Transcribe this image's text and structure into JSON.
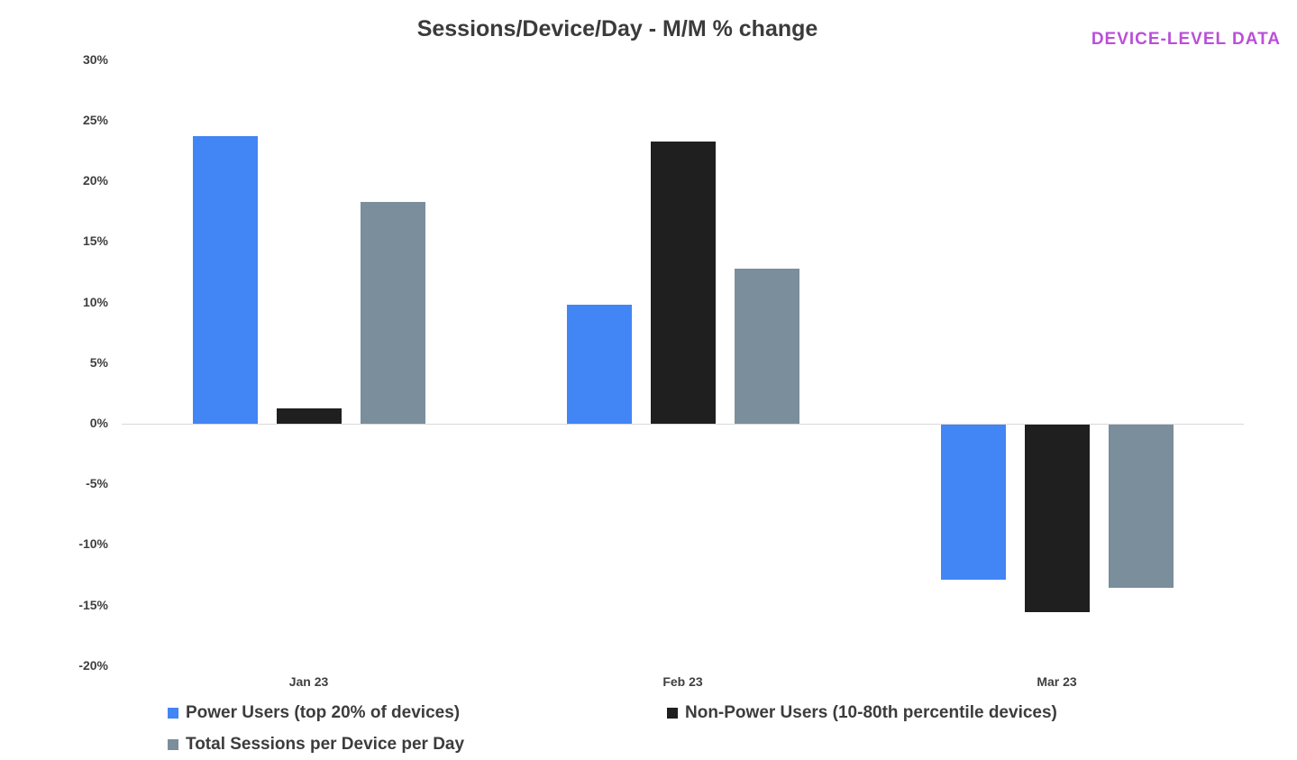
{
  "header": {
    "title": "Sessions/Device/Day - M/M % change",
    "badge": "DEVICE-LEVEL DATA",
    "badge_color": "#bb4fd8"
  },
  "chart_data": {
    "type": "bar",
    "title": "Sessions/Device/Day - M/M % change",
    "categories": [
      "Jan 23",
      "Feb 23",
      "Mar 23"
    ],
    "series": [
      {
        "name": "Power Users (top 20% of devices)",
        "color": "#4285f4",
        "values": [
          23.7,
          9.8,
          -12.8
        ]
      },
      {
        "name": "Non-Power Users (10-80th percentile devices)",
        "color": "#1f1f1f",
        "values": [
          1.3,
          23.3,
          -15.5
        ]
      },
      {
        "name": "Total Sessions per Device per Day",
        "color": "#7a8e9c",
        "values": [
          18.3,
          12.8,
          -13.5
        ]
      }
    ],
    "xlabel": "",
    "ylabel": "",
    "ylim": [
      -20,
      30
    ],
    "yticks": [
      30,
      25,
      20,
      15,
      10,
      5,
      0,
      -5,
      -10,
      -15,
      -20
    ],
    "ytick_format": "percent",
    "grid": false,
    "legend_position": "bottom"
  }
}
